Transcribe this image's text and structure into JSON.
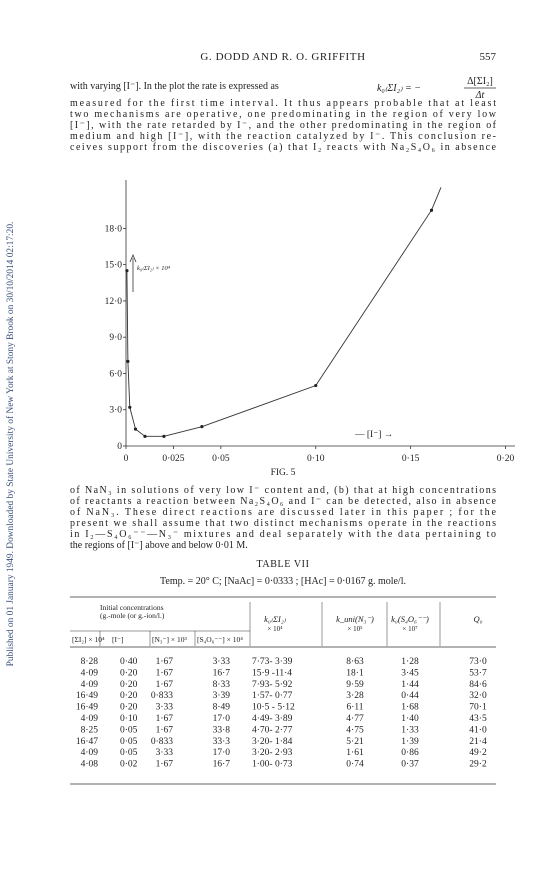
{
  "side_note": "Published on 01 January 1949. Downloaded by State University of New York at Stony Brook on 30/10/2014 02:17:20.",
  "header": {
    "title": "G. DODD AND R. O. GRIFFITH",
    "page": "557"
  },
  "paragraph_1": {
    "lines": [
      "with varying [I⁻].  In the plot the rate is expressed as",
      "measured for the first time interval.  It thus appears probable that at least",
      "two mechanisms are operative, one predominating in the region of very low",
      "[I⁻], with the rate retarded by I⁻, and the other predominating in the region of",
      "medium and high [I⁻], with the reaction catalyzed by I⁻.  This conclusion re-",
      "ceives support from the discoveries (a) that I₂ reacts with Na₂S₄O₆ in absence"
    ],
    "formula": {
      "lhs": "k₀₍ΣI₂₎ = −",
      "numerator": "Δ[ΣI₂]",
      "denominator": "Δt"
    }
  },
  "figure": {
    "y_axis_label": "k₀₍ΣI₂₎ × 10⁴",
    "x_axis_label": "— [I⁻] →",
    "caption": "FIG. 5",
    "xlim": [
      0,
      0.205
    ],
    "ylim": [
      0,
      22
    ],
    "xticks": [
      0,
      {
        "value": 0.025,
        "label": "0·025"
      },
      {
        "value": 0.05,
        "label": "0·05"
      },
      {
        "value": 0.1,
        "label": "0·10"
      },
      {
        "value": 0.15,
        "label": "0·15"
      },
      {
        "value": 0.2,
        "label": "0·20"
      }
    ],
    "yticks": [
      0,
      {
        "value": 3,
        "label": "3·0"
      },
      {
        "value": 6,
        "label": "6·0"
      },
      {
        "value": 9,
        "label": "9·0"
      },
      {
        "value": 12,
        "label": "12·0"
      },
      {
        "value": 15,
        "label": "15·0"
      },
      {
        "value": 18,
        "label": "18·0"
      }
    ],
    "points": {
      "x": [
        0.0005,
        0.001,
        0.002,
        0.005,
        0.01,
        0.02,
        0.04,
        0.1,
        0.161,
        0.166
      ],
      "y": [
        14.5,
        7.0,
        3.2,
        1.4,
        0.8,
        0.8,
        1.6,
        5.0,
        19.5,
        21.4
      ]
    }
  },
  "paragraph_2": {
    "lines": [
      "of NaN₃ in solutions of very low I⁻ content and, (b) that at high concentrations",
      "of reactants a reaction between Na₂S₄O₆ and I⁻ can be detected, also in absence",
      "of NaN₃.  These direct reactions are discussed later in this paper ; for the",
      "present we shall assume that two distinct mechanisms operate in the reactions",
      "in I₂—S₄O₆⁻⁻—N₃⁻ mixtures and deal separately with the data pertaining to",
      "the regions of [I⁻] above and below 0·01 M."
    ]
  },
  "table": {
    "title": "TABLE VII",
    "conditions": "Temp. = 20° C; [NaAc] = 0·0333 ; [HAc] = 0·0167 g. mole/l.",
    "group_header": [
      "Initial concentrations",
      "(g.-mole (or g.-ion/l.)"
    ],
    "column_headers": [
      [
        "k₀₍ΣI₂₎",
        "× 10⁴"
      ],
      [
        "k_uni(N₃⁻)",
        "× 10⁵"
      ],
      [
        "k₀(S₄O₆⁻⁻)",
        "× 10⁷"
      ],
      [
        "Q₀"
      ]
    ],
    "sub_headers": [
      "[ΣI₂] × 10⁴",
      "[I⁻]",
      "[N₃⁻] × 10³",
      "[S₄O₆⁻⁻] × 10⁴"
    ],
    "rows": [
      [
        "8·28",
        "0·40",
        "1·67",
        "3·33",
        "7·73- 3·39",
        "8·63",
        "1·28",
        "73·0"
      ],
      [
        "4·09",
        "0·20",
        "1·67",
        "16·7",
        "15·9 -11·4",
        "18·1",
        "3·45",
        "53·7"
      ],
      [
        "4·09",
        "0·20",
        "1·67",
        "8·33",
        "7·93- 5·92",
        "9·59",
        "1·44",
        "84·6"
      ],
      [
        "16·49",
        "0·20",
        "0·833",
        "3·39",
        "1·57- 0·77",
        "3·28",
        "0·44",
        "32·0"
      ],
      [
        "16·49",
        "0·20",
        "3·33",
        "8·49",
        "10·5 - 5·12",
        "6·11",
        "1·68",
        "70·1"
      ],
      [
        "4·09",
        "0·10",
        "1·67",
        "17·0",
        "4·49- 3·89",
        "4·77",
        "1·40",
        "43·5"
      ],
      [
        "8·25",
        "0·05",
        "1·67",
        "33·8",
        "4·70- 2·77",
        "4·75",
        "1·33",
        "41·0"
      ],
      [
        "16·47",
        "0·05",
        "0·833",
        "33·3",
        "3·20- 1·84",
        "5·21",
        "1·39",
        "21·4"
      ],
      [
        "4·09",
        "0·05",
        "3·33",
        "17·0",
        "3·20- 2·93",
        "1·61",
        "0·86",
        "49·2"
      ],
      [
        "4·08",
        "0·02",
        "1·67",
        "16·7",
        "1·00- 0·73",
        "0·74",
        "0·37",
        "29·2"
      ]
    ]
  }
}
